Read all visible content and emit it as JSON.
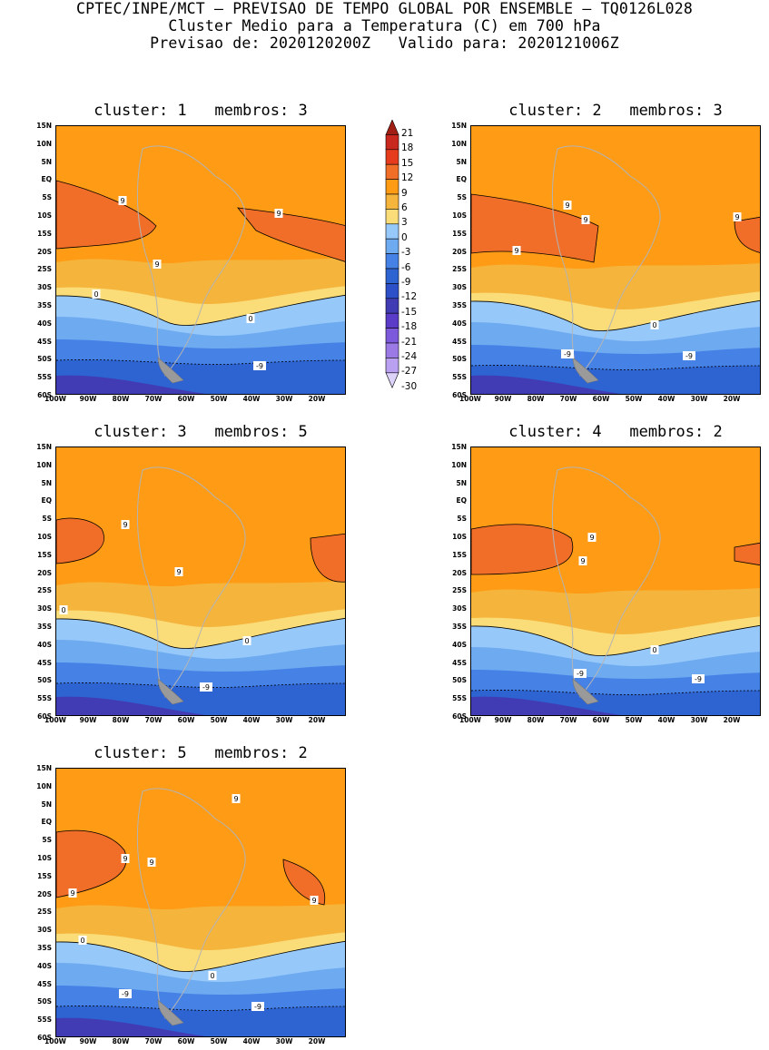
{
  "header": {
    "line1": "CPTEC/INPE/MCT – PREVISAO DE TEMPO GLOBAL POR ENSEMBLE – TQ0126L028",
    "line2": "Cluster Medio para a Temperatura (C) em 700 hPa",
    "line3": "Previsao de: 2020120200Z   Valido para: 2020121006Z"
  },
  "axes": {
    "lat_labels": [
      "15N",
      "10N",
      "5N",
      "EQ",
      "5S",
      "10S",
      "15S",
      "20S",
      "25S",
      "30S",
      "35S",
      "40S",
      "45S",
      "50S",
      "55S",
      "60S"
    ],
    "lon_labels": [
      "100W",
      "90W",
      "80W",
      "70W",
      "60W",
      "50W",
      "40W",
      "30W",
      "20W"
    ]
  },
  "colorbar": {
    "labels": [
      "21",
      "18",
      "15",
      "12",
      "9",
      "6",
      "3",
      "0",
      "-3",
      "-6",
      "-9",
      "-12",
      "-15",
      "-18",
      "-21",
      "-24",
      "-27",
      "-30"
    ],
    "colors": [
      "#a01e14",
      "#c8281e",
      "#e63c1e",
      "#f06e28",
      "#ff9b14",
      "#f5b43c",
      "#fadc78",
      "#96c8fa",
      "#6eaaf0",
      "#4682e6",
      "#2d64d2",
      "#2d50c8",
      "#413cb4",
      "#5a3cc8",
      "#7d5adc",
      "#9b7ae6",
      "#b9a0f0",
      "#dcd2fa"
    ]
  },
  "panels": [
    {
      "title": "cluster: 1   membros: 3",
      "labels": [
        {
          "t": "9",
          "x": 73,
          "y": 83
        },
        {
          "t": "9",
          "x": 245,
          "y": 97
        },
        {
          "t": "9",
          "x": 111,
          "y": 153
        },
        {
          "t": "0",
          "x": 44,
          "y": 186
        },
        {
          "t": "0",
          "x": 214,
          "y": 213
        },
        {
          "t": "-9",
          "x": 224,
          "y": 265
        }
      ]
    },
    {
      "title": "cluster: 2   membros: 3",
      "labels": [
        {
          "t": "9",
          "x": 106,
          "y": 88
        },
        {
          "t": "9",
          "x": 126,
          "y": 104
        },
        {
          "t": "9",
          "x": 293,
          "y": 101
        },
        {
          "t": "9",
          "x": 50,
          "y": 138
        },
        {
          "t": "0",
          "x": 202,
          "y": 220
        },
        {
          "t": "-9",
          "x": 106,
          "y": 252
        },
        {
          "t": "-9",
          "x": 240,
          "y": 254
        }
      ]
    },
    {
      "title": "cluster: 3   membros: 5",
      "labels": [
        {
          "t": "9",
          "x": 76,
          "y": 86
        },
        {
          "t": "9",
          "x": 135,
          "y": 138
        },
        {
          "t": "0",
          "x": 8,
          "y": 180
        },
        {
          "t": "0",
          "x": 210,
          "y": 214
        },
        {
          "t": "-9",
          "x": 165,
          "y": 265
        }
      ]
    },
    {
      "title": "cluster: 4   membros: 2",
      "labels": [
        {
          "t": "9",
          "x": 133,
          "y": 100
        },
        {
          "t": "9",
          "x": 123,
          "y": 126
        },
        {
          "t": "0",
          "x": 202,
          "y": 224
        },
        {
          "t": "-9",
          "x": 120,
          "y": 250
        },
        {
          "t": "-9",
          "x": 250,
          "y": 256
        }
      ]
    },
    {
      "title": "cluster: 5   membros: 2",
      "labels": [
        {
          "t": "9",
          "x": 198,
          "y": 34
        },
        {
          "t": "9",
          "x": 76,
          "y": 100
        },
        {
          "t": "9",
          "x": 105,
          "y": 104
        },
        {
          "t": "9",
          "x": 18,
          "y": 138
        },
        {
          "t": "9",
          "x": 284,
          "y": 146
        },
        {
          "t": "0",
          "x": 29,
          "y": 190
        },
        {
          "t": "0",
          "x": 172,
          "y": 229
        },
        {
          "t": "-9",
          "x": 76,
          "y": 249
        },
        {
          "t": "-9",
          "x": 222,
          "y": 263
        }
      ]
    }
  ]
}
